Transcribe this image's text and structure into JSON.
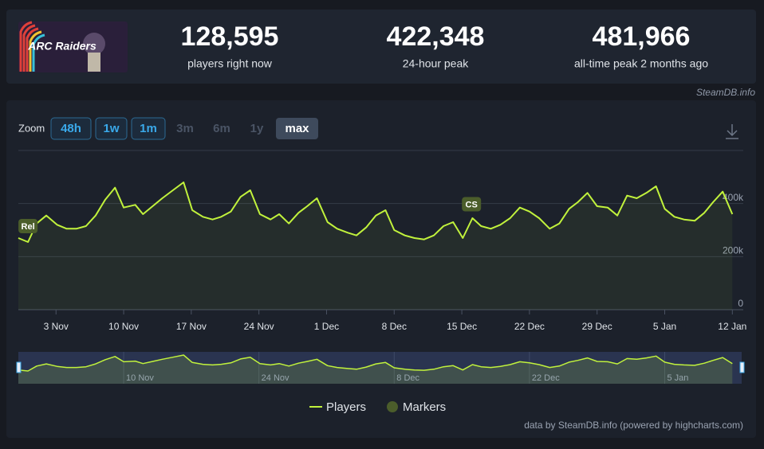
{
  "header": {
    "image_text": "ARC Raiders",
    "stats": [
      {
        "value": "128,595",
        "label": "players right now"
      },
      {
        "value": "422,348",
        "label": "24-hour peak"
      },
      {
        "value": "481,966",
        "label": "all-time peak 2 months ago"
      }
    ],
    "credit": "SteamDB.info"
  },
  "zoom": {
    "label": "Zoom",
    "buttons": [
      {
        "text": "48h",
        "state": "enabled"
      },
      {
        "text": "1w",
        "state": "enabled"
      },
      {
        "text": "1m",
        "state": "enabled"
      },
      {
        "text": "3m",
        "state": "disabled"
      },
      {
        "text": "6m",
        "state": "disabled"
      },
      {
        "text": "1y",
        "state": "disabled"
      },
      {
        "text": "max",
        "state": "selected"
      }
    ]
  },
  "chart_data": {
    "type": "line",
    "x": [
      -3.9,
      -2.9,
      -2.0,
      -1.0,
      0.1,
      1.1,
      2.1,
      3.1,
      4.1,
      5.1,
      6.1,
      7.0,
      8.2,
      9.0,
      10.0,
      11.0,
      12.1,
      13.2,
      14.1,
      15.2,
      16.2,
      17.1,
      18.1,
      19.1,
      20.1,
      21.1,
      22.2,
      23.1,
      24.1,
      25.1,
      26.0,
      27.0,
      28.1,
      29.1,
      30.2,
      31.1,
      32.1,
      33.1,
      34.1,
      35.0,
      36.1,
      37.1,
      38.1,
      39.1,
      40.1,
      41.1,
      42.1,
      43.1,
      44.0,
      45.0,
      46.0,
      47.0,
      48.0,
      49.0,
      50.0,
      51.1,
      52.1,
      53.1,
      54.0,
      55.0,
      56.0,
      57.1,
      58.1,
      59.1,
      60.1,
      61.1,
      62.1,
      63.0,
      64.0,
      65.0,
      66.1,
      67.1,
      68.0,
      69.0,
      70.0
    ],
    "series": [
      {
        "name": "Players",
        "color": "#c1f23c",
        "values": [
          270000,
          255000,
          325000,
          355000,
          320000,
          305000,
          305000,
          315000,
          355000,
          415000,
          460000,
          385000,
          395000,
          360000,
          390000,
          420000,
          450000,
          480000,
          375000,
          350000,
          340000,
          350000,
          370000,
          425000,
          450000,
          360000,
          340000,
          360000,
          325000,
          365000,
          390000,
          420000,
          330000,
          305000,
          290000,
          280000,
          310000,
          355000,
          375000,
          300000,
          280000,
          270000,
          265000,
          280000,
          315000,
          330000,
          270000,
          345000,
          315000,
          305000,
          320000,
          345000,
          385000,
          370000,
          345000,
          305000,
          325000,
          380000,
          405000,
          440000,
          390000,
          385000,
          355000,
          430000,
          420000,
          440000,
          465000,
          380000,
          350000,
          340000,
          335000,
          365000,
          405000,
          445000,
          360000
        ]
      }
    ],
    "xlim": [
      -3.9,
      70.8
    ],
    "xticks": [
      {
        "value": 0,
        "label": "3 Nov"
      },
      {
        "value": 7,
        "label": "10 Nov"
      },
      {
        "value": 14,
        "label": "17 Nov"
      },
      {
        "value": 21,
        "label": "24 Nov"
      },
      {
        "value": 28,
        "label": "1 Dec"
      },
      {
        "value": 35,
        "label": "8 Dec"
      },
      {
        "value": 42,
        "label": "15 Dec"
      },
      {
        "value": 49,
        "label": "22 Dec"
      },
      {
        "value": 56,
        "label": "29 Dec"
      },
      {
        "value": 63,
        "label": "5 Jan"
      },
      {
        "value": 70,
        "label": "12 Jan"
      }
    ],
    "ylim": [
      0,
      600000
    ],
    "yticks": [
      0,
      {
        "value": 200000,
        "label": "200k"
      },
      {
        "value": 400000,
        "label": "400k"
      }
    ],
    "grid": true,
    "markers": {
      "name": "Markers",
      "color": "#4b5d2b",
      "items": [
        {
          "label": "Rel",
          "x": -2.9
        },
        {
          "label": "CS",
          "x": 43.0
        }
      ]
    },
    "navigator": {
      "xticks": [
        {
          "value": 7,
          "label": "10 Nov"
        },
        {
          "value": 21,
          "label": "24 Nov"
        },
        {
          "value": 35,
          "label": "8 Dec"
        },
        {
          "value": 49,
          "label": "22 Dec"
        },
        {
          "value": 63,
          "label": "5 Jan"
        }
      ]
    }
  },
  "footer": {
    "credit": "data by SteamDB.info (powered by highcharts.com)"
  }
}
